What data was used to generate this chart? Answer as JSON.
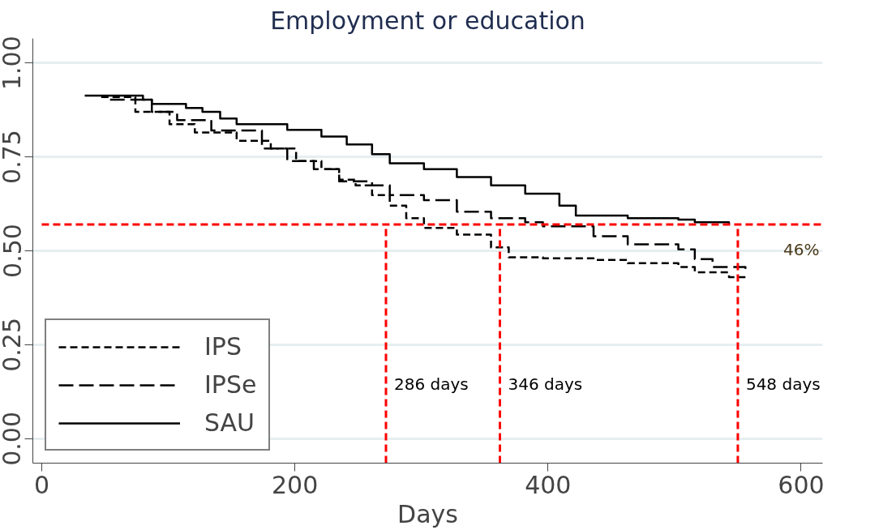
{
  "chart_data": {
    "type": "step",
    "title": "Employment or education",
    "xlabel": "Days",
    "xlim": [
      -7,
      617
    ],
    "ylim": [
      -0.065,
      1.065
    ],
    "xticks": [
      0,
      200,
      400,
      600
    ],
    "yticks": [
      {
        "value": 0,
        "label": "0.00"
      },
      {
        "value": 0.25,
        "label": "0.25"
      },
      {
        "value": 0.5,
        "label": "0.50"
      },
      {
        "value": 0.75,
        "label": "0.75"
      },
      {
        "value": 1,
        "label": "1.00"
      }
    ],
    "grid": "y",
    "legend": "bottom left",
    "annotations": [
      "46%"
    ],
    "series": [
      {
        "name": "IPS",
        "color": "#000000",
        "line_style": "dashed",
        "x": [
          47,
          74,
          101,
          121,
          154,
          181,
          201,
          221,
          235,
          248,
          261,
          275,
          288,
          302,
          328,
          355,
          369,
          396,
          436,
          463,
          503,
          516,
          543,
          556
        ],
        "values": [
          0.909,
          0.87,
          0.837,
          0.815,
          0.793,
          0.772,
          0.739,
          0.717,
          0.689,
          0.674,
          0.648,
          0.62,
          0.587,
          0.561,
          0.543,
          0.509,
          0.483,
          0.48,
          0.476,
          0.467,
          0.457,
          0.443,
          0.43,
          0.43
        ]
      },
      {
        "name": "IPSe",
        "color": "#000000",
        "line_style": "longdashed",
        "x": [
          54,
          87,
          107,
          134,
          174,
          194,
          215,
          235,
          261,
          275,
          302,
          328,
          355,
          382,
          396,
          436,
          463,
          503,
          516,
          530,
          556
        ],
        "values": [
          0.902,
          0.87,
          0.848,
          0.82,
          0.772,
          0.739,
          0.717,
          0.685,
          0.674,
          0.648,
          0.635,
          0.604,
          0.587,
          0.576,
          0.565,
          0.539,
          0.517,
          0.504,
          0.478,
          0.457,
          0.452
        ]
      },
      {
        "name": "SAU",
        "color": "#000000",
        "line_style": "solid",
        "x": [
          34,
          80,
          87,
          114,
          127,
          141,
          154,
          194,
          221,
          241,
          261,
          275,
          302,
          328,
          355,
          382,
          409,
          422,
          463,
          503,
          516,
          543
        ],
        "values": [
          0.913,
          0.902,
          0.891,
          0.88,
          0.87,
          0.852,
          0.837,
          0.822,
          0.804,
          0.783,
          0.757,
          0.733,
          0.717,
          0.696,
          0.674,
          0.652,
          0.62,
          0.594,
          0.587,
          0.583,
          0.576,
          0.57
        ]
      }
    ],
    "ref_lines": [
      {
        "axis": "y",
        "value": 0.57,
        "color": "#ff0000",
        "line_style": "dashed"
      },
      {
        "axis": "x",
        "value": 272,
        "label": "286 days",
        "color": "#ff0000",
        "line_style": "dashed"
      },
      {
        "axis": "x",
        "value": 362,
        "label": "346 days",
        "color": "#ff0000",
        "line_style": "dashed"
      },
      {
        "axis": "x",
        "value": 550,
        "label": "548 days",
        "color": "#ff0000",
        "line_style": "dashed"
      }
    ]
  }
}
